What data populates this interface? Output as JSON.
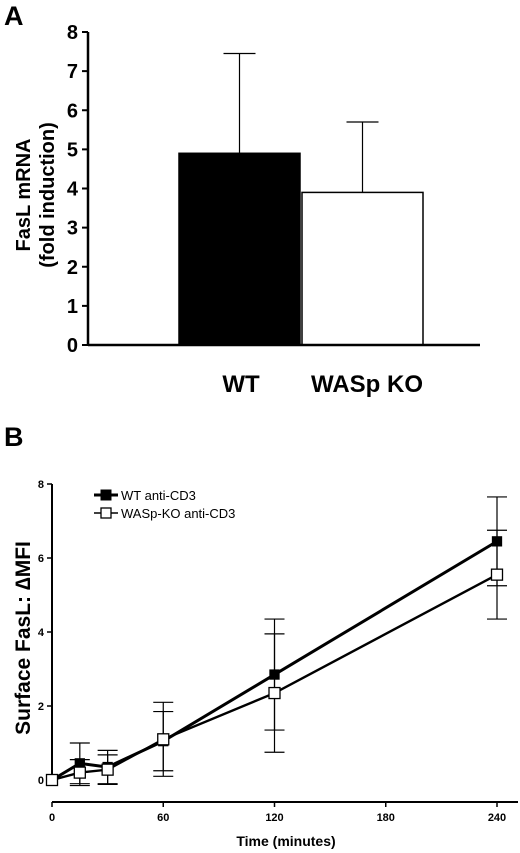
{
  "chart_data": [
    {
      "type": "bar",
      "panel": "A",
      "categories": [
        "WT",
        "WASp KO"
      ],
      "values": [
        4.9,
        3.9
      ],
      "errors": [
        2.55,
        1.8
      ],
      "colors": [
        "#000000",
        "#ffffff"
      ],
      "ylabel_lines": [
        "FasL mRNA",
        "(fold induction)"
      ],
      "ylim": [
        0,
        8
      ],
      "yticks": [
        "0",
        "1",
        "2",
        "3",
        "4",
        "5",
        "6",
        "7",
        "8"
      ]
    },
    {
      "type": "line",
      "panel": "B",
      "x": [
        0,
        15,
        30,
        60,
        120,
        240
      ],
      "xticks": [
        "0",
        "60",
        "120",
        "180",
        "240"
      ],
      "yticks": [
        "0",
        "2",
        "4",
        "6",
        "8"
      ],
      "xlim": [
        0,
        240
      ],
      "ylim": [
        0,
        8
      ],
      "xlabel": "Time (minutes)",
      "ylabel": "Surface FasL: ∆MFI",
      "legend_position": "top-left",
      "series": [
        {
          "name": "WT anti-CD3",
          "marker": "filled-square",
          "y": [
            0,
            0.45,
            0.35,
            1.05,
            2.85,
            6.45
          ],
          "err": [
            0,
            0.55,
            0.45,
            0.8,
            1.5,
            1.2
          ]
        },
        {
          "name": "WASp-KO anti-CD3",
          "marker": "open-square",
          "y": [
            0,
            0.2,
            0.28,
            1.1,
            2.35,
            5.55
          ],
          "err": [
            0,
            0.35,
            0.4,
            1.0,
            1.6,
            1.2
          ]
        }
      ]
    }
  ],
  "panel_labels": [
    "A",
    "B"
  ]
}
